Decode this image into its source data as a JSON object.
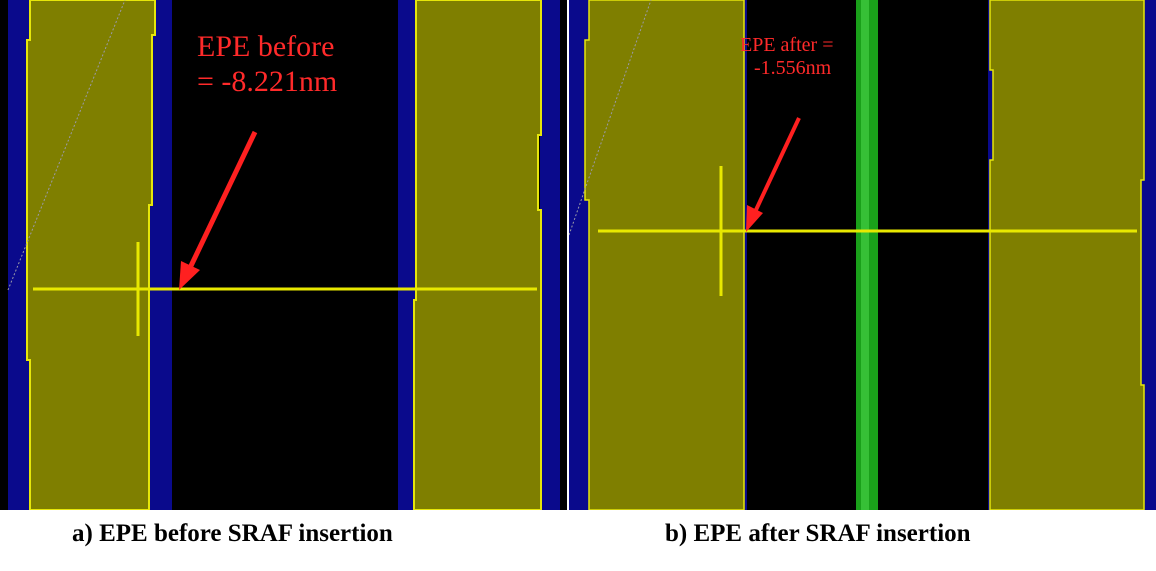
{
  "panels": [
    {
      "annotation_line1": "EPE  before",
      "annotation_line2": "=  -8.221nm",
      "caption": "a)   EPE before SRAF insertion"
    },
    {
      "annotation_line1": "EPE  after =",
      "annotation_line2": "-1.556nm",
      "caption": "b)   EPE after SRAF insertion"
    }
  ],
  "colors": {
    "background": "#000000",
    "pattern_fill": "#7f7f00",
    "pattern_edge": "#e6e60a",
    "blue_band": "#0a0a8c",
    "sraf_green": "#1aa01a",
    "cutline": "#e8e800",
    "arrow": "#ff2020"
  }
}
